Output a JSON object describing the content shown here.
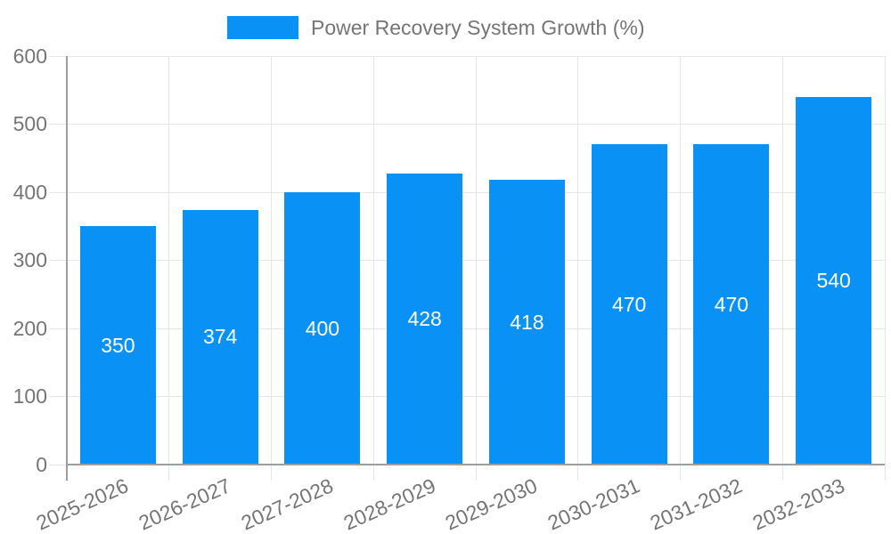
{
  "chart_data": {
    "type": "bar",
    "title": "",
    "legend_label": "Power Recovery System Growth (%)",
    "legend_position": "top",
    "categories": [
      "2025-2026",
      "2026-2027",
      "2027-2028",
      "2028-2029",
      "2029-2030",
      "2030-2031",
      "2031-2032",
      "2032-2033"
    ],
    "values": [
      350,
      374,
      400,
      428,
      418,
      470,
      470,
      540
    ],
    "xlabel": "",
    "ylabel": "",
    "ylim": [
      0,
      600
    ],
    "ytick_step": 100,
    "grid": true,
    "bar_labels_visible": true,
    "colors": {
      "bar": "#0991f5",
      "axis_text": "#757575",
      "bar_label_text": "#ffffff",
      "grid_line": "#e6e6e6",
      "axis_line": "#9e9e9e",
      "background": "#ffffff"
    }
  }
}
